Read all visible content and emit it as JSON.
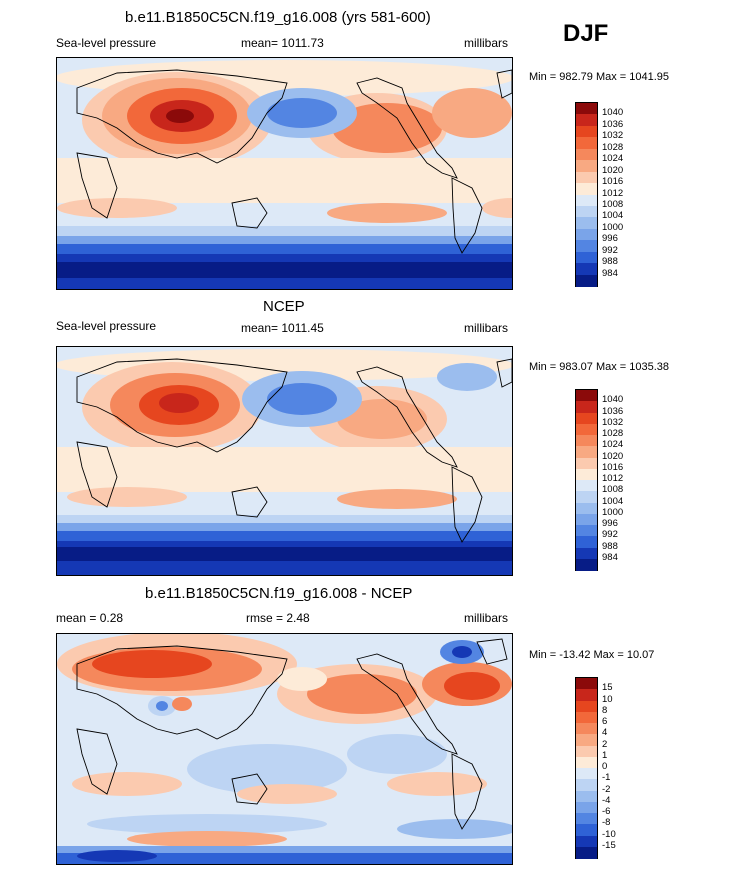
{
  "season": "DJF",
  "panels": [
    {
      "title": "b.e11.B1850C5CN.f19_g16.008 (yrs 581-600)",
      "left_label": "Sea-level pressure",
      "center_label": "mean= 1011.73",
      "right_label": "millibars",
      "minmax": "Min = 982.79 Max = 1041.95",
      "colorbar_labels": [
        "1040",
        "1036",
        "1032",
        "1028",
        "1024",
        "1020",
        "1016",
        "1012",
        "1008",
        "1004",
        "1000",
        "996",
        "992",
        "988",
        "984"
      ],
      "colorbar_colors": [
        "#8b0a0a",
        "#c8261b",
        "#e6461f",
        "#f2683a",
        "#f5885c",
        "#f8a982",
        "#fbcaaf",
        "#fdebd8",
        "#dde9f7",
        "#bdd4f3",
        "#9bbdee",
        "#7aa4e9",
        "#5385e2",
        "#2f62d6",
        "#1538b5",
        "#071c86"
      ]
    },
    {
      "title": "NCEP",
      "left_label": "Sea-level pressure",
      "center_label": "mean= 1011.45",
      "right_label": "millibars",
      "minmax": "Min = 983.07 Max = 1035.38",
      "colorbar_labels": [
        "1040",
        "1036",
        "1032",
        "1028",
        "1024",
        "1020",
        "1016",
        "1012",
        "1008",
        "1004",
        "1000",
        "996",
        "992",
        "988",
        "984"
      ],
      "colorbar_colors": [
        "#8b0a0a",
        "#c8261b",
        "#e6461f",
        "#f2683a",
        "#f5885c",
        "#f8a982",
        "#fbcaaf",
        "#fdebd8",
        "#dde9f7",
        "#bdd4f3",
        "#9bbdee",
        "#7aa4e9",
        "#5385e2",
        "#2f62d6",
        "#1538b5",
        "#071c86"
      ]
    },
    {
      "title": "b.e11.B1850C5CN.f19_g16.008 - NCEP",
      "left_label": "mean =   0.28",
      "center_label": "rmse =   2.48",
      "right_label": "millibars",
      "minmax": "Min = -13.42 Max =  10.07",
      "colorbar_labels": [
        "15",
        "10",
        "8",
        "6",
        "4",
        "2",
        "1",
        "0",
        "-1",
        "-2",
        "-4",
        "-6",
        "-8",
        "-10",
        "-15"
      ],
      "colorbar_colors": [
        "#8b0a0a",
        "#c8261b",
        "#e6461f",
        "#f2683a",
        "#f5885c",
        "#f8a982",
        "#fbcaaf",
        "#fdebd8",
        "#dde9f7",
        "#bdd4f3",
        "#9bbdee",
        "#7aa4e9",
        "#5385e2",
        "#2f62d6",
        "#1538b5",
        "#071c86"
      ]
    }
  ]
}
